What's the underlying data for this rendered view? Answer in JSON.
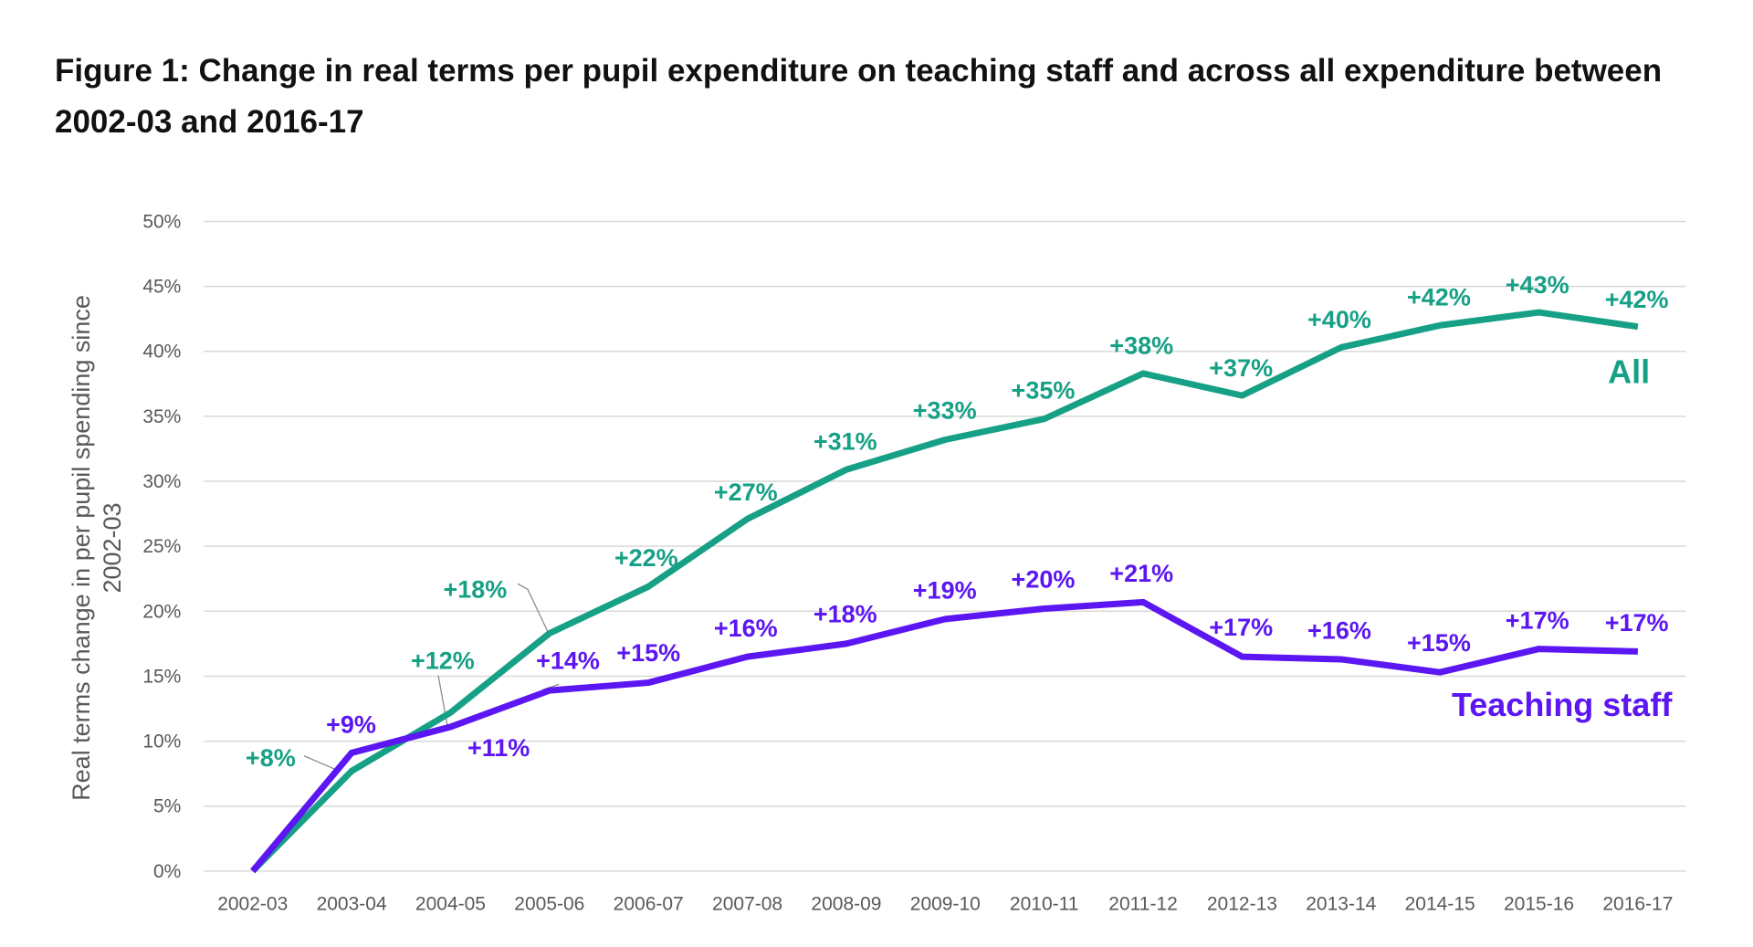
{
  "chart_data": {
    "type": "line",
    "title": "Figure 1: Change in real terms per pupil expenditure on teaching staff and across all expenditure between 2002-03 and 2016-17",
    "xlabel": "",
    "ylabel": "Real terms change in per pupil spending since 2002-03",
    "categories": [
      "2002-03",
      "2003-04",
      "2004-05",
      "2005-06",
      "2006-07",
      "2007-08",
      "2008-09",
      "2009-10",
      "2010-11",
      "2011-12",
      "2012-13",
      "2013-14",
      "2014-15",
      "2015-16",
      "2016-17"
    ],
    "ylim": [
      0,
      50
    ],
    "yticks": [
      "0%",
      "5%",
      "10%",
      "15%",
      "20%",
      "25%",
      "30%",
      "35%",
      "40%",
      "45%",
      "50%"
    ],
    "grid": true,
    "legend": "inline labels at line ends",
    "series": [
      {
        "name": "All",
        "color": "#16a085",
        "values": [
          0,
          7.7,
          12.2,
          18.3,
          21.9,
          27.1,
          30.9,
          33.2,
          34.8,
          38.3,
          36.6,
          40.3,
          42.0,
          43.0,
          41.9
        ],
        "labels": [
          "",
          "+8%",
          "+12%",
          "+18%",
          "+22%",
          "+27%",
          "+31%",
          "+33%",
          "+35%",
          "+38%",
          "+37%",
          "+40%",
          "+42%",
          "+43%",
          "+42%"
        ]
      },
      {
        "name": "Teaching staff",
        "color": "#5b16f2",
        "values": [
          0,
          9.1,
          11.1,
          13.9,
          14.5,
          16.5,
          17.5,
          19.4,
          20.2,
          20.7,
          16.5,
          16.3,
          15.3,
          17.1,
          16.9
        ],
        "labels": [
          "",
          "+9%",
          "+11%",
          "+14%",
          "+15%",
          "+16%",
          "+18%",
          "+19%",
          "+20%",
          "+21%",
          "+17%",
          "+16%",
          "+15%",
          "+17%",
          "+17%"
        ]
      }
    ]
  }
}
